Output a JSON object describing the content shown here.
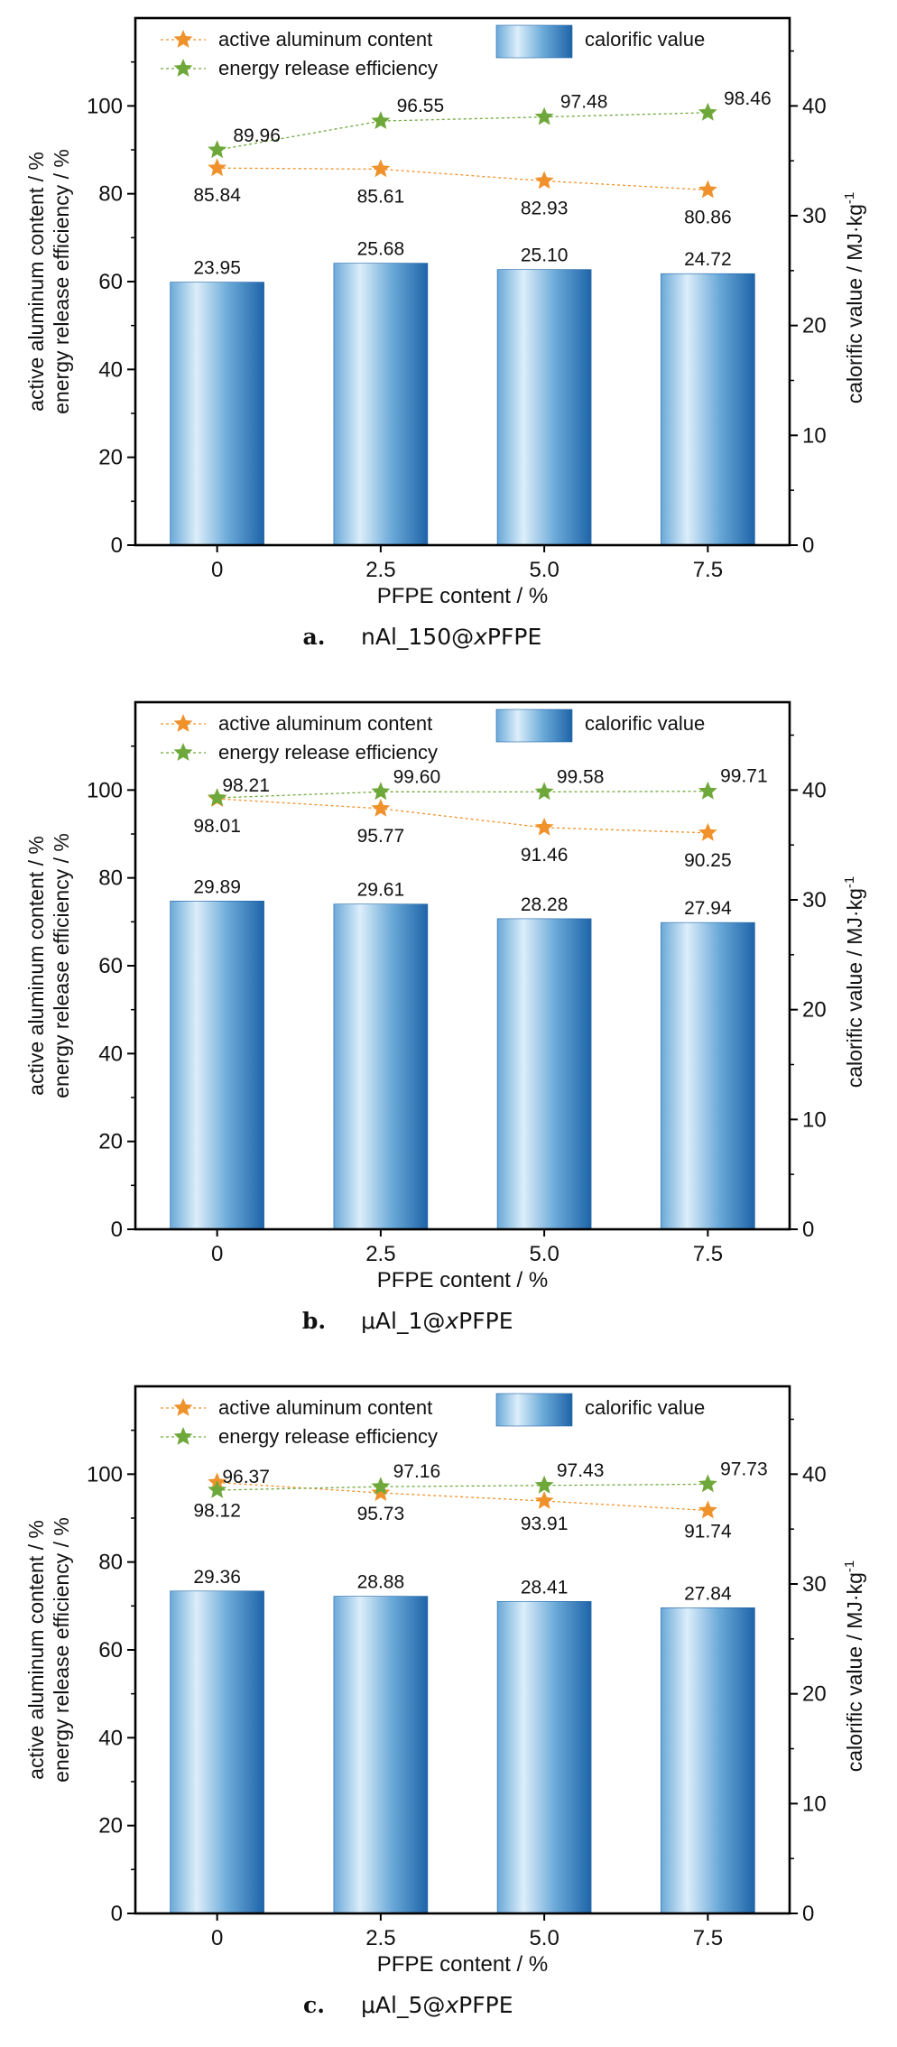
{
  "figure": {
    "panels": [
      {
        "tag": "a.",
        "name": "nAl_150@",
        "name_var": "x",
        "name_tail": "PFPE"
      },
      {
        "tag": "b.",
        "name": "μAl_1@",
        "name_var": "x",
        "name_tail": "PFPE"
      },
      {
        "tag": "c.",
        "name": "μAl_5@",
        "name_var": "x",
        "name_tail": "PFPE"
      }
    ]
  },
  "colors": {
    "bar_light": "#dceefa",
    "bar_mid": "#6aa9d8",
    "bar_dark": "#1e64a8",
    "active_aluminum": "#f0922b",
    "energy_release": "#6fa83a",
    "axis": "#000000"
  },
  "chart_data": [
    {
      "type": "bar",
      "xlabel": "PFPE content / %",
      "ylabel_lines": [
        "active aluminum content / %",
        "energy release efficiency / %"
      ],
      "y2label": "calorific value / MJ·kg",
      "y2label_sup": "-1",
      "categories": [
        "0",
        "2.5",
        "5.0",
        "7.5"
      ],
      "ylim": [
        0,
        120
      ],
      "yticks": [
        "0",
        "20",
        "40",
        "60",
        "80",
        "100"
      ],
      "y2lim": [
        0,
        48
      ],
      "y2ticks": [
        "0",
        "10",
        "20",
        "30",
        "40"
      ],
      "legend_position": "top",
      "series": [
        {
          "name": "calorific value",
          "axis": "right",
          "kind": "bar",
          "values": [
            23.95,
            25.68,
            25.1,
            24.72
          ],
          "labels": [
            "23.95",
            "25.68",
            "25.10",
            "24.72"
          ]
        },
        {
          "name": "active aluminum content",
          "axis": "left",
          "kind": "line",
          "values": [
            85.84,
            85.61,
            82.93,
            80.86
          ],
          "labels": [
            "85.84",
            "85.61",
            "82.93",
            "80.86"
          ]
        },
        {
          "name": "energy release efficiency",
          "axis": "left",
          "kind": "line",
          "values": [
            89.96,
            96.55,
            97.48,
            98.46
          ],
          "labels": [
            "89.96",
            "96.55",
            "97.48",
            "98.46"
          ]
        }
      ]
    },
    {
      "type": "bar",
      "xlabel": "PFPE content / %",
      "ylabel_lines": [
        "active aluminum content / %",
        "energy release efficiency / %"
      ],
      "y2label": "calorific value / MJ·kg",
      "y2label_sup": "-1",
      "categories": [
        "0",
        "2.5",
        "5.0",
        "7.5"
      ],
      "ylim": [
        0,
        120
      ],
      "yticks": [
        "0",
        "20",
        "40",
        "60",
        "80",
        "100"
      ],
      "y2lim": [
        0,
        48
      ],
      "y2ticks": [
        "0",
        "10",
        "20",
        "30",
        "40"
      ],
      "legend_position": "top",
      "series": [
        {
          "name": "calorific value",
          "axis": "right",
          "kind": "bar",
          "values": [
            29.89,
            29.61,
            28.28,
            27.94
          ],
          "labels": [
            "29.89",
            "29.61",
            "28.28",
            "27.94"
          ]
        },
        {
          "name": "active aluminum content",
          "axis": "left",
          "kind": "line",
          "values": [
            98.01,
            95.77,
            91.46,
            90.25
          ],
          "labels": [
            "98.01",
            "95.77",
            "91.46",
            "90.25"
          ]
        },
        {
          "name": "energy release efficiency",
          "axis": "left",
          "kind": "line",
          "values": [
            98.21,
            99.6,
            99.58,
            99.71
          ],
          "labels": [
            "98.21",
            "99.60",
            "99.58",
            "99.71"
          ]
        }
      ]
    },
    {
      "type": "bar",
      "xlabel": "PFPE content / %",
      "ylabel_lines": [
        "active aluminum content / %",
        "energy release efficiency / %"
      ],
      "y2label": "calorific value / MJ·kg",
      "y2label_sup": "-1",
      "categories": [
        "0",
        "2.5",
        "5.0",
        "7.5"
      ],
      "ylim": [
        0,
        120
      ],
      "yticks": [
        "0",
        "20",
        "40",
        "60",
        "80",
        "100"
      ],
      "y2lim": [
        0,
        48
      ],
      "y2ticks": [
        "0",
        "10",
        "20",
        "30",
        "40"
      ],
      "legend_position": "top",
      "series": [
        {
          "name": "calorific value",
          "axis": "right",
          "kind": "bar",
          "values": [
            29.36,
            28.88,
            28.41,
            27.84
          ],
          "labels": [
            "29.36",
            "28.88",
            "28.41",
            "27.84"
          ]
        },
        {
          "name": "active aluminum content",
          "axis": "left",
          "kind": "line",
          "values": [
            98.12,
            95.73,
            93.91,
            91.74
          ],
          "labels": [
            "98.12",
            "95.73",
            "93.91",
            "91.74"
          ]
        },
        {
          "name": "energy release efficiency",
          "axis": "left",
          "kind": "line",
          "values": [
            96.37,
            97.16,
            97.43,
            97.73
          ],
          "labels": [
            "96.37",
            "97.16",
            "97.43",
            "97.73"
          ]
        }
      ]
    }
  ]
}
